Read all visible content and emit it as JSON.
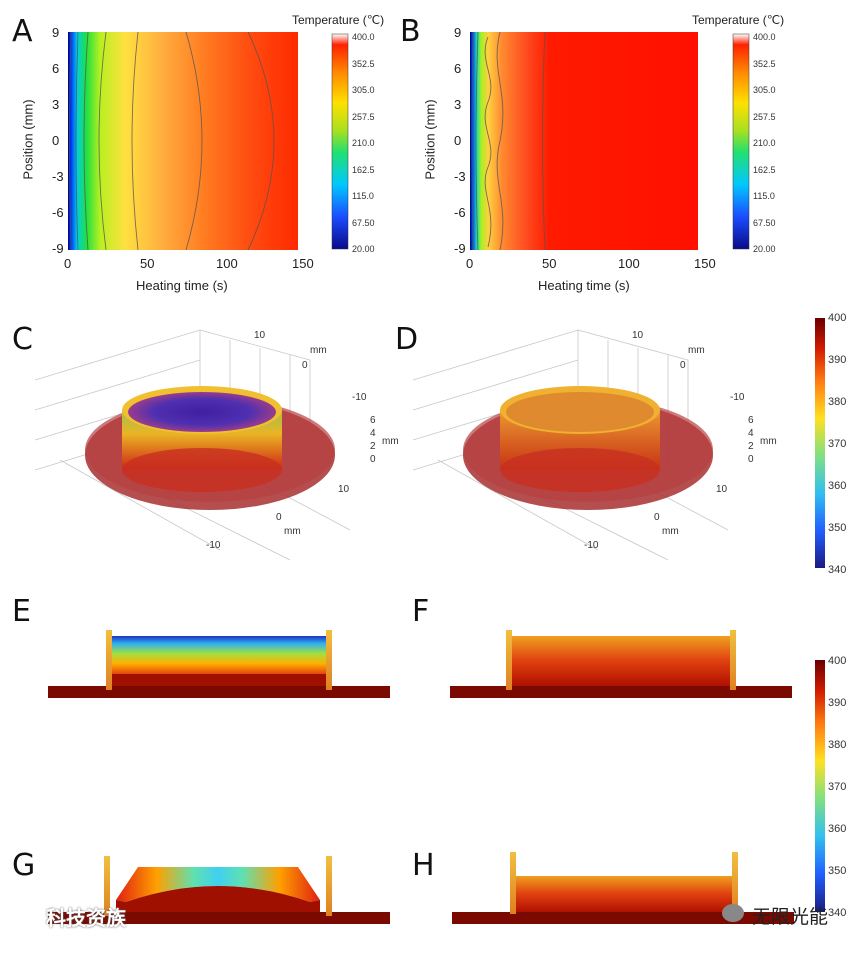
{
  "panels": {
    "A": "A",
    "B": "B",
    "C": "C",
    "D": "D",
    "E": "E",
    "F": "F",
    "G": "G",
    "H": "H"
  },
  "contour": {
    "cbar_title": "Temperature (℃)",
    "cbar_ticks": [
      "400.0",
      "352.5",
      "305.0",
      "257.5",
      "210.0",
      "162.5",
      "115.0",
      "67.50",
      "20.00"
    ],
    "xlabel": "Heating time (s)",
    "ylabel": "Position (mm)",
    "xticks": [
      "0",
      "50",
      "100",
      "150"
    ],
    "yticks": [
      "9",
      "6",
      "3",
      "0",
      "-3",
      "-6",
      "-9"
    ]
  },
  "threeD": {
    "axis_unit": "mm",
    "ticks_top": [
      "10",
      "0",
      "-10"
    ],
    "ticks_z": [
      "6",
      "4",
      "2",
      "0"
    ],
    "ticks_bottom": [
      "10",
      "0",
      "-10"
    ]
  },
  "colorbar": {
    "ticks": [
      "400",
      "390",
      "380",
      "370",
      "360",
      "350",
      "340"
    ]
  },
  "colorbar2": {
    "ticks": [
      "400",
      "390",
      "380",
      "370",
      "360",
      "350",
      "340"
    ]
  },
  "watermark": {
    "left": "科技资族",
    "right": "无限光能"
  },
  "colors": {
    "hot": "#ff1a00",
    "jet_low": "#1a1aa0",
    "dark_red": "#7a0000"
  }
}
